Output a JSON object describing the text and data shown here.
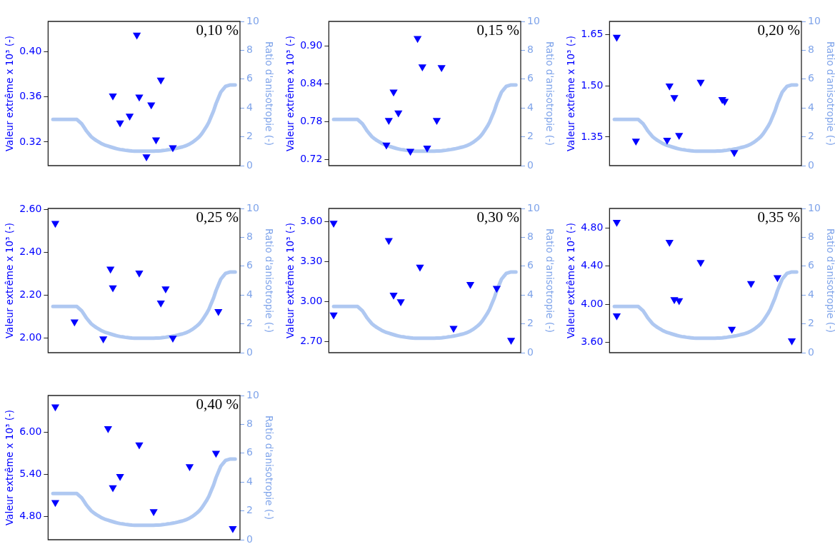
{
  "chart_data": [
    {
      "type": "scatter",
      "title": "0,10 %",
      "ylabel": "Valeur extrême x 10³ (-)",
      "y2label": "Ratio d'anisotropie (-)",
      "tick_labels": "y",
      "categories": [
        null,
        null,
        null,
        null,
        null,
        null,
        null,
        null,
        null,
        null,
        null,
        null,
        null,
        null,
        null,
        null,
        null,
        null,
        null,
        null,
        null,
        null,
        null,
        null,
        null,
        null,
        null,
        null,
        null,
        null,
        null,
        null,
        null,
        null,
        null,
        null,
        null,
        null,
        null,
        null,
        null,
        null,
        null,
        null,
        null,
        null,
        null,
        null,
        null,
        null,
        null,
        null,
        null,
        null,
        null,
        null,
        null,
        null,
        null,
        null,
        null,
        null,
        null,
        null,
        null,
        null,
        null,
        null,
        null,
        null,
        null,
        null,
        null,
        null,
        null,
        null,
        null,
        null,
        null,
        null,
        null
      ],
      "ylim": [
        0.299,
        0.427
      ],
      "yticks": [
        0.32,
        0.36,
        {
          "value": 0.4,
          "label": "0.40"
        }
      ],
      "y2lim": [
        0,
        10
      ],
      "y2ticks": [
        0,
        2,
        4,
        6,
        8,
        10
      ],
      "series": [
        {
          "marker": "triangle",
          "color": "#0000ff",
          "values": [
            null,
            null,
            null,
            null,
            null,
            null,
            null,
            null,
            null,
            null,
            null,
            null,
            null,
            null,
            null,
            null,
            null,
            null,
            null,
            null,
            null,
            null,
            null,
            null,
            null,
            null,
            null,
            0.361,
            null,
            null,
            0.337,
            null,
            null,
            null,
            0.343,
            null,
            null,
            0.415,
            0.36,
            null,
            null,
            0.307,
            null,
            0.353,
            null,
            0.322,
            null,
            0.375,
            null,
            null,
            null,
            null,
            0.315,
            null,
            null,
            null,
            null,
            null,
            null,
            null,
            null,
            null,
            null,
            null,
            null,
            null,
            null,
            null,
            null,
            null,
            null,
            null,
            null,
            null,
            null,
            null,
            null,
            null,
            null,
            null,
            null
          ]
        },
        {
          "type": "line",
          "axis": "y2",
          "color": "#9dbbee",
          "values": [
            null,
            null,
            3.2,
            3.2,
            3.2,
            3.2,
            3.2,
            3.2,
            3.2,
            3.2,
            3.2,
            3.2,
            3.2,
            3.05,
            2.9,
            2.65,
            2.4,
            2.2,
            2.0,
            1.87,
            1.75,
            1.65,
            1.55,
            1.47,
            1.4,
            1.35,
            1.3,
            1.25,
            1.2,
            1.16,
            1.12,
            1.1,
            1.07,
            1.05,
            1.03,
            1.01,
            1.0,
            1.0,
            1.0,
            1.0,
            1.0,
            1.0,
            1.0,
            1.0,
            1.0,
            1.01,
            1.02,
            1.03,
            1.05,
            1.07,
            1.1,
            1.12,
            1.15,
            1.18,
            1.22,
            1.26,
            1.3,
            1.36,
            1.42,
            1.5,
            1.6,
            1.72,
            1.85,
            2.0,
            2.2,
            2.45,
            2.7,
            3.0,
            3.4,
            3.8,
            4.3,
            4.7,
            5.1,
            5.3,
            5.5,
            5.55,
            5.6,
            5.6,
            5.6,
            null,
            null
          ]
        }
      ]
    },
    {
      "type": "scatter",
      "title": "0,15 %",
      "ylabel": "Valeur extrême x 10³ (-)",
      "y2label": "Ratio d'anisotropie (-)",
      "tick_labels": "y",
      "categories": [
        null,
        null,
        null,
        null,
        null,
        null,
        null,
        null,
        null,
        null,
        null,
        null,
        null,
        null,
        null,
        null,
        null,
        null,
        null,
        null,
        null,
        null,
        null,
        null,
        null,
        null,
        null,
        null,
        null,
        null,
        null,
        null,
        null,
        null,
        null,
        null,
        null,
        null,
        null,
        null,
        null,
        null,
        null,
        null,
        null,
        null,
        null,
        null,
        null,
        null,
        null,
        null,
        null,
        null,
        null,
        null,
        null,
        null,
        null,
        null,
        null,
        null,
        null,
        null,
        null,
        null,
        null,
        null,
        null,
        null,
        null,
        null,
        null,
        null,
        null,
        null,
        null,
        null,
        null,
        null,
        null
      ],
      "ylim": [
        0.71,
        0.939
      ],
      "yticks": [
        0.72,
        0.78,
        0.84,
        {
          "value": 0.9,
          "label": "0.90"
        }
      ],
      "y2lim": [
        0,
        10
      ],
      "y2ticks": [
        0,
        2,
        4,
        6,
        8,
        10
      ],
      "series": [
        {
          "marker": "triangle",
          "color": "#0000ff",
          "values": [
            null,
            null,
            null,
            null,
            null,
            null,
            null,
            null,
            null,
            null,
            null,
            null,
            null,
            null,
            null,
            null,
            null,
            null,
            null,
            null,
            null,
            null,
            null,
            null,
            0.743,
            0.782,
            null,
            0.827,
            null,
            0.794,
            null,
            null,
            null,
            null,
            0.733,
            null,
            null,
            0.912,
            null,
            0.867,
            null,
            0.738,
            null,
            null,
            null,
            0.782,
            null,
            0.866,
            null,
            null,
            null,
            null,
            null,
            null,
            null,
            null,
            null,
            null,
            null,
            null,
            null,
            null,
            null,
            null,
            null,
            null,
            null,
            null,
            null,
            null,
            null,
            null,
            null,
            null,
            null,
            null,
            null,
            null,
            null,
            null,
            null
          ]
        },
        {
          "type": "line",
          "axis": "y2",
          "color": "#9dbbee",
          "values": [
            null,
            null,
            3.2,
            3.2,
            3.2,
            3.2,
            3.2,
            3.2,
            3.2,
            3.2,
            3.2,
            3.2,
            3.2,
            3.05,
            2.9,
            2.65,
            2.4,
            2.2,
            2.0,
            1.87,
            1.75,
            1.65,
            1.55,
            1.47,
            1.4,
            1.35,
            1.3,
            1.25,
            1.2,
            1.16,
            1.12,
            1.1,
            1.07,
            1.05,
            1.03,
            1.01,
            1.0,
            1.0,
            1.0,
            1.0,
            1.0,
            1.0,
            1.0,
            1.0,
            1.0,
            1.01,
            1.02,
            1.03,
            1.05,
            1.07,
            1.1,
            1.12,
            1.15,
            1.18,
            1.22,
            1.26,
            1.3,
            1.36,
            1.42,
            1.5,
            1.6,
            1.72,
            1.85,
            2.0,
            2.2,
            2.45,
            2.7,
            3.0,
            3.4,
            3.8,
            4.3,
            4.7,
            5.1,
            5.3,
            5.5,
            5.55,
            5.6,
            5.6,
            5.6,
            null,
            null
          ]
        }
      ]
    },
    {
      "type": "scatter",
      "title": "0,20 %",
      "ylabel": "Valeur extrême x 10³ (-)",
      "y2label": "Ratio d'anisotropie (-)",
      "tick_labels": "y",
      "categories": [
        null,
        null,
        null,
        null,
        null,
        null,
        null,
        null,
        null,
        null,
        null,
        null,
        null,
        null,
        null,
        null,
        null,
        null,
        null,
        null,
        null,
        null,
        null,
        null,
        null,
        null,
        null,
        null,
        null,
        null,
        null,
        null,
        null,
        null,
        null,
        null,
        null,
        null,
        null,
        null,
        null,
        null,
        null,
        null,
        null,
        null,
        null,
        null,
        null,
        null,
        null,
        null,
        null,
        null,
        null,
        null,
        null,
        null,
        null,
        null,
        null,
        null,
        null,
        null,
        null,
        null,
        null,
        null,
        null,
        null,
        null,
        null,
        null,
        null,
        null,
        null,
        null,
        null,
        null,
        null,
        null
      ],
      "ylim": [
        1.266,
        1.689
      ],
      "yticks": [
        1.35,
        {
          "value": 1.5,
          "label": "1.50"
        },
        1.65
      ],
      "y2lim": [
        0,
        10
      ],
      "y2ticks": [
        0,
        2,
        4,
        6,
        8,
        10
      ],
      "series": [
        {
          "marker": "triangle",
          "color": "#0000ff",
          "values": [
            null,
            null,
            null,
            1.643,
            null,
            null,
            null,
            null,
            null,
            null,
            null,
            1.338,
            null,
            null,
            null,
            null,
            null,
            null,
            null,
            null,
            null,
            null,
            null,
            null,
            1.341,
            1.5,
            null,
            1.466,
            null,
            1.355,
            null,
            null,
            null,
            null,
            null,
            null,
            null,
            null,
            1.511,
            null,
            null,
            null,
            null,
            null,
            null,
            null,
            null,
            1.46,
            1.455,
            null,
            null,
            null,
            1.305,
            null,
            null,
            null,
            null,
            null,
            null,
            null,
            null,
            null,
            null,
            null,
            null,
            null,
            null,
            null,
            null,
            null,
            null,
            null,
            null,
            null,
            null,
            null,
            null,
            null,
            null,
            null,
            null
          ]
        },
        {
          "type": "line",
          "axis": "y2",
          "color": "#9dbbee",
          "values": [
            null,
            null,
            3.2,
            3.2,
            3.2,
            3.2,
            3.2,
            3.2,
            3.2,
            3.2,
            3.2,
            3.2,
            3.2,
            3.05,
            2.9,
            2.65,
            2.4,
            2.2,
            2.0,
            1.87,
            1.75,
            1.65,
            1.55,
            1.47,
            1.4,
            1.35,
            1.3,
            1.25,
            1.2,
            1.16,
            1.12,
            1.1,
            1.07,
            1.05,
            1.03,
            1.01,
            1.0,
            1.0,
            1.0,
            1.0,
            1.0,
            1.0,
            1.0,
            1.0,
            1.0,
            1.01,
            1.02,
            1.03,
            1.05,
            1.07,
            1.1,
            1.12,
            1.15,
            1.18,
            1.22,
            1.26,
            1.3,
            1.36,
            1.42,
            1.5,
            1.6,
            1.72,
            1.85,
            2.0,
            2.2,
            2.45,
            2.7,
            3.0,
            3.4,
            3.8,
            4.3,
            4.7,
            5.1,
            5.3,
            5.5,
            5.55,
            5.6,
            5.6,
            5.6,
            null,
            null
          ]
        }
      ]
    },
    {
      "type": "scatter",
      "title": "0,25 %",
      "ylabel": "Valeur extrême x 10³ (-)",
      "y2label": "Ratio d'anisotropie (-)",
      "tick_labels": "y",
      "categories": [
        null,
        null,
        null,
        null,
        null,
        null,
        null,
        null,
        null,
        null,
        null,
        null,
        null,
        null,
        null,
        null,
        null,
        null,
        null,
        null,
        null,
        null,
        null,
        null,
        null,
        null,
        null,
        null,
        null,
        null,
        null,
        null,
        null,
        null,
        null,
        null,
        null,
        null,
        null,
        null,
        null,
        null,
        null,
        null,
        null,
        null,
        null,
        null,
        null,
        null,
        null,
        null,
        null,
        null,
        null,
        null,
        null,
        null,
        null,
        null,
        null,
        null,
        null,
        null,
        null,
        null,
        null,
        null,
        null,
        null,
        null,
        null,
        null,
        null,
        null,
        null,
        null,
        null,
        null,
        null,
        null
      ],
      "ylim": [
        1.932,
        2.606
      ],
      "yticks": [
        {
          "value": 2.0,
          "label": "2.00"
        },
        {
          "value": 2.2,
          "label": "2.20"
        },
        {
          "value": 2.4,
          "label": "2.40"
        },
        {
          "value": 2.6,
          "label": "2.60"
        }
      ],
      "y2lim": [
        0,
        10
      ],
      "y2ticks": [
        0,
        2,
        4,
        6,
        8,
        10
      ],
      "series": [
        {
          "marker": "triangle",
          "color": "#0000ff",
          "values": [
            null,
            null,
            null,
            2.537,
            null,
            null,
            null,
            null,
            null,
            null,
            null,
            2.076,
            null,
            null,
            null,
            null,
            null,
            null,
            null,
            null,
            null,
            null,
            null,
            1.997,
            null,
            null,
            2.323,
            2.236,
            null,
            null,
            null,
            null,
            null,
            null,
            null,
            null,
            null,
            null,
            2.305,
            null,
            null,
            null,
            null,
            null,
            null,
            null,
            null,
            2.165,
            null,
            2.231,
            null,
            null,
            2.0,
            null,
            null,
            null,
            null,
            null,
            null,
            null,
            null,
            null,
            null,
            null,
            null,
            null,
            null,
            null,
            null,
            null,
            null,
            2.125,
            null,
            null,
            null,
            null,
            null,
            null,
            null,
            null,
            null
          ]
        },
        {
          "type": "line",
          "axis": "y2",
          "color": "#9dbbee",
          "values": [
            null,
            null,
            3.2,
            3.2,
            3.2,
            3.2,
            3.2,
            3.2,
            3.2,
            3.2,
            3.2,
            3.2,
            3.2,
            3.05,
            2.9,
            2.65,
            2.4,
            2.2,
            2.0,
            1.87,
            1.75,
            1.65,
            1.55,
            1.47,
            1.4,
            1.35,
            1.3,
            1.25,
            1.2,
            1.16,
            1.12,
            1.1,
            1.07,
            1.05,
            1.03,
            1.01,
            1.0,
            1.0,
            1.0,
            1.0,
            1.0,
            1.0,
            1.0,
            1.0,
            1.0,
            1.01,
            1.02,
            1.03,
            1.05,
            1.07,
            1.1,
            1.12,
            1.15,
            1.18,
            1.22,
            1.26,
            1.3,
            1.36,
            1.42,
            1.5,
            1.6,
            1.72,
            1.85,
            2.0,
            2.2,
            2.45,
            2.7,
            3.0,
            3.4,
            3.8,
            4.3,
            4.7,
            5.1,
            5.3,
            5.5,
            5.55,
            5.6,
            5.6,
            5.6,
            null,
            null
          ]
        }
      ]
    },
    {
      "type": "scatter",
      "title": "0,30 %",
      "ylabel": "Valeur extrême x 10³ (-)",
      "y2label": "Ratio d'anisotropie (-)",
      "tick_labels": "y",
      "categories": [
        null,
        null,
        null,
        null,
        null,
        null,
        null,
        null,
        null,
        null,
        null,
        null,
        null,
        null,
        null,
        null,
        null,
        null,
        null,
        null,
        null,
        null,
        null,
        null,
        null,
        null,
        null,
        null,
        null,
        null,
        null,
        null,
        null,
        null,
        null,
        null,
        null,
        null,
        null,
        null,
        null,
        null,
        null,
        null,
        null,
        null,
        null,
        null,
        null,
        null,
        null,
        null,
        null,
        null,
        null,
        null,
        null,
        null,
        null,
        null,
        null,
        null,
        null,
        null,
        null,
        null,
        null,
        null,
        null,
        null,
        null,
        null,
        null,
        null,
        null,
        null,
        null,
        null,
        null,
        null,
        null
      ],
      "ylim": [
        2.616,
        3.7
      ],
      "yticks": [
        {
          "value": 2.7,
          "label": "2.70"
        },
        {
          "value": 3.0,
          "label": "3.00"
        },
        {
          "value": 3.3,
          "label": "3.30"
        },
        {
          "value": 3.6,
          "label": "3.60"
        }
      ],
      "y2lim": [
        0,
        10
      ],
      "y2ticks": [
        0,
        2,
        4,
        6,
        8,
        10
      ],
      "series": [
        {
          "marker": "triangle",
          "color": "#0000ff",
          "values": [
            null,
            null,
            3.59,
            null,
            null,
            null,
            null,
            null,
            null,
            null,
            null,
            null,
            null,
            null,
            null,
            null,
            null,
            null,
            null,
            null,
            null,
            null,
            null,
            null,
            null,
            3.46,
            null,
            3.05,
            null,
            null,
            3.0,
            null,
            null,
            null,
            null,
            null,
            null,
            null,
            3.26,
            null,
            null,
            null,
            null,
            null,
            null,
            null,
            null,
            null,
            null,
            null,
            null,
            null,
            2.8,
            null,
            null,
            null,
            null,
            null,
            null,
            3.13,
            null,
            null,
            null,
            null,
            null,
            null,
            null,
            null,
            null,
            null,
            3.1,
            null,
            null,
            null,
            null,
            null,
            2.71,
            null,
            null,
            null,
            null
          ]
        },
        {
          "marker": "triangle",
          "color": "#0000ff",
          "values": [
            null,
            null,
            2.9,
            null,
            null,
            null,
            null,
            null,
            null,
            null,
            null,
            null,
            null,
            null,
            null,
            null,
            null,
            null,
            null,
            null,
            null,
            null,
            null,
            null,
            null,
            null,
            null,
            null,
            null,
            null,
            null,
            null,
            null,
            null,
            null,
            null,
            null,
            null,
            null,
            null,
            null,
            null,
            null,
            null,
            null,
            null,
            null,
            null,
            null,
            null,
            null,
            null,
            null,
            null,
            null,
            null,
            null,
            null,
            null,
            null,
            null,
            null,
            null,
            null,
            null,
            null,
            null,
            null,
            null,
            null,
            null,
            null,
            null,
            null,
            null,
            null,
            null,
            null,
            null,
            null,
            null
          ]
        },
        {
          "type": "line",
          "axis": "y2",
          "color": "#9dbbee",
          "values": [
            null,
            null,
            3.2,
            3.2,
            3.2,
            3.2,
            3.2,
            3.2,
            3.2,
            3.2,
            3.2,
            3.2,
            3.2,
            3.05,
            2.9,
            2.65,
            2.4,
            2.2,
            2.0,
            1.87,
            1.75,
            1.65,
            1.55,
            1.47,
            1.4,
            1.35,
            1.3,
            1.25,
            1.2,
            1.16,
            1.12,
            1.1,
            1.07,
            1.05,
            1.03,
            1.01,
            1.0,
            1.0,
            1.0,
            1.0,
            1.0,
            1.0,
            1.0,
            1.0,
            1.0,
            1.01,
            1.02,
            1.03,
            1.05,
            1.07,
            1.1,
            1.12,
            1.15,
            1.18,
            1.22,
            1.26,
            1.3,
            1.36,
            1.42,
            1.5,
            1.6,
            1.72,
            1.85,
            2.0,
            2.2,
            2.45,
            2.7,
            3.0,
            3.4,
            3.8,
            4.3,
            4.7,
            5.1,
            5.3,
            5.5,
            5.55,
            5.6,
            5.6,
            5.6,
            null,
            null
          ]
        }
      ]
    },
    {
      "type": "scatter",
      "title": "0,35 %",
      "ylabel": "Valeur extrême x 10³ (-)",
      "y2label": "Ratio d'anisotropie (-)",
      "tick_labels": "y",
      "categories": [
        null,
        null,
        null,
        null,
        null,
        null,
        null,
        null,
        null,
        null,
        null,
        null,
        null,
        null,
        null,
        null,
        null,
        null,
        null,
        null,
        null,
        null,
        null,
        null,
        null,
        null,
        null,
        null,
        null,
        null,
        null,
        null,
        null,
        null,
        null,
        null,
        null,
        null,
        null,
        null,
        null,
        null,
        null,
        null,
        null,
        null,
        null,
        null,
        null,
        null,
        null,
        null,
        null,
        null,
        null,
        null,
        null,
        null,
        null,
        null,
        null,
        null,
        null,
        null,
        null,
        null,
        null,
        null,
        null,
        null,
        null,
        null,
        null,
        null,
        null,
        null,
        null,
        null,
        null,
        null,
        null
      ],
      "ylim": [
        3.494,
        5.004
      ],
      "yticks": [
        {
          "value": 3.6,
          "label": "3.60"
        },
        {
          "value": 4.0,
          "label": "4.00"
        },
        {
          "value": 4.4,
          "label": "4.40"
        },
        {
          "value": 4.8,
          "label": "4.80"
        }
      ],
      "y2lim": [
        0,
        10
      ],
      "y2ticks": [
        0,
        2,
        4,
        6,
        8,
        10
      ],
      "series": [
        {
          "marker": "triangle",
          "color": "#0000ff",
          "values": [
            null,
            null,
            null,
            4.86,
            null,
            null,
            null,
            null,
            null,
            null,
            null,
            null,
            null,
            null,
            null,
            null,
            null,
            null,
            null,
            null,
            null,
            null,
            null,
            null,
            null,
            4.65,
            null,
            4.05,
            null,
            4.04,
            null,
            null,
            null,
            null,
            null,
            null,
            null,
            null,
            4.44,
            null,
            null,
            null,
            null,
            null,
            null,
            null,
            null,
            null,
            null,
            null,
            null,
            3.74,
            null,
            null,
            null,
            null,
            null,
            null,
            null,
            4.22,
            null,
            null,
            null,
            null,
            null,
            null,
            null,
            null,
            null,
            null,
            4.28,
            null,
            null,
            null,
            null,
            null,
            3.62,
            null,
            null,
            null,
            null
          ]
        },
        {
          "marker": "triangle",
          "color": "#0000ff",
          "values": [
            null,
            null,
            null,
            3.88,
            null,
            null,
            null,
            null,
            null,
            null,
            null,
            null,
            null,
            null,
            null,
            null,
            null,
            null,
            null,
            null,
            null,
            null,
            null,
            null,
            null,
            null,
            null,
            null,
            null,
            null,
            null,
            null,
            null,
            null,
            null,
            null,
            null,
            null,
            null,
            null,
            null,
            null,
            null,
            null,
            null,
            null,
            null,
            null,
            null,
            null,
            null,
            null,
            null,
            null,
            null,
            null,
            null,
            null,
            null,
            null,
            null,
            null,
            null,
            null,
            null,
            null,
            null,
            null,
            null,
            null,
            null,
            null,
            null,
            null,
            null,
            null,
            null,
            null,
            null,
            null,
            null
          ]
        },
        {
          "type": "line",
          "axis": "y2",
          "color": "#9dbbee",
          "values": [
            null,
            null,
            3.2,
            3.2,
            3.2,
            3.2,
            3.2,
            3.2,
            3.2,
            3.2,
            3.2,
            3.2,
            3.2,
            3.05,
            2.9,
            2.65,
            2.4,
            2.2,
            2.0,
            1.87,
            1.75,
            1.65,
            1.55,
            1.47,
            1.4,
            1.35,
            1.3,
            1.25,
            1.2,
            1.16,
            1.12,
            1.1,
            1.07,
            1.05,
            1.03,
            1.01,
            1.0,
            1.0,
            1.0,
            1.0,
            1.0,
            1.0,
            1.0,
            1.0,
            1.0,
            1.01,
            1.02,
            1.03,
            1.05,
            1.07,
            1.1,
            1.12,
            1.15,
            1.18,
            1.22,
            1.26,
            1.3,
            1.36,
            1.42,
            1.5,
            1.6,
            1.72,
            1.85,
            2.0,
            2.2,
            2.45,
            2.7,
            3.0,
            3.4,
            3.8,
            4.3,
            4.7,
            5.1,
            5.3,
            5.5,
            5.55,
            5.6,
            5.6,
            5.6,
            null,
            null
          ]
        }
      ]
    },
    {
      "type": "scatter",
      "title": "0,40 %",
      "ylabel": "Valeur extrême x 10³ (-)",
      "y2label": "Ratio d'anisotropie (-)",
      "tick_labels": "y",
      "categories": [
        null,
        null,
        null,
        null,
        null,
        null,
        null,
        null,
        null,
        null,
        null,
        null,
        null,
        null,
        null,
        null,
        null,
        null,
        null,
        null,
        null,
        null,
        null,
        null,
        null,
        null,
        null,
        null,
        null,
        null,
        null,
        null,
        null,
        null,
        null,
        null,
        null,
        null,
        null,
        null,
        null,
        null,
        null,
        null,
        null,
        null,
        null,
        null,
        null,
        null,
        null,
        null,
        null,
        null,
        null,
        null,
        null,
        null,
        null,
        null,
        null,
        null,
        null,
        null,
        null,
        null,
        null,
        null,
        null,
        null,
        null,
        null,
        null,
        null,
        null,
        null,
        null,
        null,
        null,
        null,
        null
      ],
      "ylim": [
        4.47,
        6.52
      ],
      "yticks": [
        {
          "value": 4.8,
          "label": "4.80"
        },
        {
          "value": 5.4,
          "label": "5.40"
        },
        {
          "value": 6.0,
          "label": "6.00"
        }
      ],
      "y2lim": [
        0,
        10
      ],
      "y2ticks": [
        0,
        2,
        4,
        6,
        8,
        10
      ],
      "series": [
        {
          "marker": "triangle",
          "color": "#0000ff",
          "values": [
            null,
            null,
            null,
            6.36,
            null,
            null,
            null,
            null,
            null,
            null,
            null,
            null,
            null,
            null,
            null,
            null,
            null,
            null,
            null,
            null,
            null,
            null,
            null,
            null,
            null,
            6.05,
            null,
            5.21,
            null,
            null,
            5.37,
            null,
            null,
            null,
            null,
            null,
            null,
            null,
            5.82,
            null,
            null,
            null,
            null,
            null,
            4.87,
            null,
            null,
            null,
            null,
            null,
            null,
            null,
            null,
            null,
            null,
            null,
            null,
            null,
            null,
            5.51,
            null,
            null,
            null,
            null,
            null,
            null,
            null,
            null,
            null,
            null,
            5.7,
            null,
            null,
            null,
            null,
            null,
            null,
            4.63,
            null,
            null,
            null
          ]
        },
        {
          "marker": "triangle",
          "color": "#0000ff",
          "values": [
            null,
            null,
            null,
            5.0,
            null,
            null,
            null,
            null,
            null,
            null,
            null,
            null,
            null,
            null,
            null,
            null,
            null,
            null,
            null,
            null,
            null,
            null,
            null,
            null,
            null,
            null,
            null,
            null,
            null,
            null,
            null,
            null,
            null,
            null,
            null,
            null,
            null,
            null,
            null,
            null,
            null,
            null,
            null,
            null,
            null,
            null,
            null,
            null,
            null,
            null,
            null,
            null,
            null,
            null,
            null,
            null,
            null,
            null,
            null,
            null,
            null,
            null,
            null,
            null,
            null,
            null,
            null,
            null,
            null,
            null,
            null,
            null,
            null,
            null,
            null,
            null,
            null,
            null,
            null,
            null,
            null
          ]
        },
        {
          "type": "line",
          "axis": "y2",
          "color": "#9dbbee",
          "values": [
            null,
            null,
            3.2,
            3.2,
            3.2,
            3.2,
            3.2,
            3.2,
            3.2,
            3.2,
            3.2,
            3.2,
            3.2,
            3.05,
            2.9,
            2.65,
            2.4,
            2.2,
            2.0,
            1.87,
            1.75,
            1.65,
            1.55,
            1.47,
            1.4,
            1.35,
            1.3,
            1.25,
            1.2,
            1.16,
            1.12,
            1.1,
            1.07,
            1.05,
            1.03,
            1.01,
            1.0,
            1.0,
            1.0,
            1.0,
            1.0,
            1.0,
            1.0,
            1.0,
            1.0,
            1.01,
            1.02,
            1.03,
            1.05,
            1.07,
            1.1,
            1.12,
            1.15,
            1.18,
            1.22,
            1.26,
            1.3,
            1.36,
            1.42,
            1.5,
            1.6,
            1.72,
            1.85,
            2.0,
            2.2,
            2.45,
            2.7,
            3.0,
            3.4,
            3.8,
            4.3,
            4.7,
            5.1,
            5.3,
            5.5,
            5.55,
            5.6,
            5.6,
            5.6,
            null,
            null
          ]
        }
      ]
    }
  ]
}
